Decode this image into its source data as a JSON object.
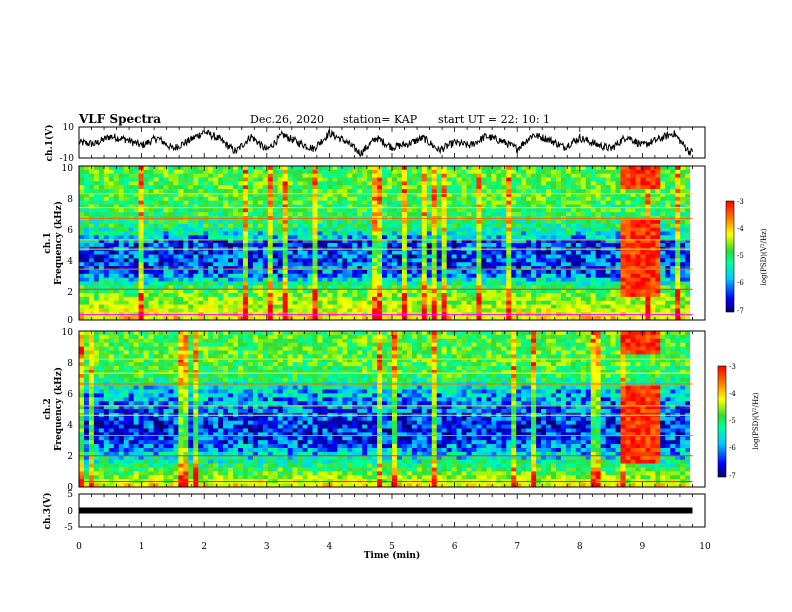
{
  "header": {
    "title": "VLF Spectra",
    "date": "Dec.26, 2020",
    "station": "station= KAP",
    "start": "start  UT =   22: 10: 1"
  },
  "chart_data": [
    {
      "type": "line",
      "panel": "ch1-waveform",
      "ylabel": "ch.1(V)",
      "ylim": [
        -10,
        10
      ],
      "yticks": [
        "10",
        "-10"
      ],
      "xlim": [
        0,
        10
      ],
      "series": [
        {
          "color": "#000000",
          "x": [
            0,
            0.25,
            0.5,
            0.75,
            1,
            1.25,
            1.5,
            1.75,
            2,
            2.25,
            2.5,
            2.75,
            3,
            3.25,
            3.5,
            3.75,
            4,
            4.25,
            4.5,
            4.75,
            5,
            5.25,
            5.5,
            5.75,
            6,
            6.25,
            6.5,
            6.75,
            7,
            7.25,
            7.5,
            7.75,
            8,
            8.25,
            8.5,
            8.75,
            9,
            9.25,
            9.5,
            9.75
          ],
          "y": [
            0,
            -1,
            4,
            2,
            -2,
            3,
            -4,
            1,
            7,
            2,
            -6,
            4,
            -5,
            5,
            0,
            -4,
            6,
            1,
            -7,
            3,
            -3,
            -1,
            3,
            -5,
            0,
            -2,
            4,
            1,
            -4,
            5,
            2,
            -3,
            3,
            -1,
            -4,
            4,
            -2,
            2,
            6,
            -6
          ]
        }
      ]
    },
    {
      "type": "heatmap",
      "panel": "ch1-spectrogram",
      "ylabel": "ch.1",
      "ylabel2": "Frequency (kHz)",
      "xlim": [
        0,
        10
      ],
      "ylim": [
        0,
        10
      ],
      "yticks": [
        "0",
        "2",
        "4",
        "6",
        "8",
        "10"
      ],
      "colorbar": {
        "label": "log(PSD)(V²/Hz)",
        "ticks": [
          "-3",
          "-4",
          "-5",
          "-6",
          "-7"
        ],
        "range": [
          -7,
          -3
        ]
      },
      "freq_bands_khz": [
        0,
        1,
        2,
        3,
        4,
        5,
        6,
        7,
        8,
        9,
        10
      ],
      "band_level": [
        -4,
        -4.5,
        -5,
        -6.3,
        -6.4,
        -6.4,
        -5.3,
        -5.2,
        -5,
        -5,
        -5
      ],
      "event": {
        "x": [
          8.65,
          9.3
        ],
        "level": -3.2
      }
    },
    {
      "type": "heatmap",
      "panel": "ch2-spectrogram",
      "ylabel": "ch.2",
      "ylabel2": "Frequency (kHz)",
      "xlim": [
        0,
        10
      ],
      "ylim": [
        0,
        10
      ],
      "yticks": [
        "0",
        "2",
        "4",
        "6",
        "8",
        "10"
      ],
      "colorbar": {
        "label": "log(PSD)(V²/Hz)",
        "ticks": [
          "-3",
          "-4",
          "-5",
          "-6",
          "-7"
        ],
        "range": [
          -7,
          -3
        ]
      },
      "freq_bands_khz": [
        0,
        1,
        2,
        3,
        4,
        5,
        6,
        7,
        8,
        9,
        10
      ],
      "band_level": [
        -4,
        -5,
        -5.8,
        -6.4,
        -6.5,
        -6.2,
        -6,
        -5.2,
        -5,
        -5,
        -5
      ],
      "event": {
        "x": [
          8.65,
          9.3
        ],
        "level": -3.2
      }
    },
    {
      "type": "line",
      "panel": "ch3-waveform",
      "ylabel": "ch.3(V)",
      "ylim": [
        -5,
        5
      ],
      "yticks": [
        "5",
        "0",
        "-5"
      ],
      "xlim": [
        0,
        10
      ],
      "xticks": [
        "0",
        "1",
        "2",
        "3",
        "4",
        "5",
        "6",
        "7",
        "8",
        "9",
        "10"
      ],
      "xlabel": "Time  (min)",
      "series": [
        {
          "color": "#000000",
          "x": [
            0,
            9.8
          ],
          "y": [
            0,
            0
          ]
        }
      ]
    }
  ]
}
